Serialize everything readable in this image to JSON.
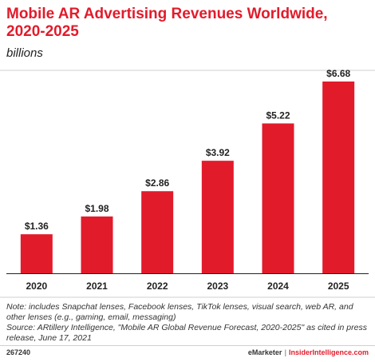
{
  "chart_data": {
    "type": "bar",
    "title": "Mobile AR Advertising Revenues Worldwide, 2020-2025",
    "subtitle": "billions",
    "categories": [
      "2020",
      "2021",
      "2022",
      "2023",
      "2024",
      "2025"
    ],
    "values": [
      1.36,
      1.98,
      2.86,
      3.92,
      5.22,
      6.68
    ],
    "data_labels": [
      "$1.36",
      "$1.98",
      "$2.86",
      "$3.92",
      "$5.22",
      "$6.68"
    ],
    "xlabel": "",
    "ylabel": "",
    "grid": false,
    "bar_color": "#e21b2b"
  },
  "notes": {
    "note": "Note: includes Snapchat lenses, Facebook lenses, TikTok lenses, visual search, web AR, and other lenses (e.g., gaming, email, messaging)",
    "source": "Source: ARtillery Intelligence, \"Mobile AR Global Revenue Forecast, 2020-2025\" as cited in press release, June 17, 2021"
  },
  "footer": {
    "chart_id": "267240",
    "brand": "eMarketer",
    "separator": "|",
    "brand2": "InsiderIntelligence.com"
  }
}
